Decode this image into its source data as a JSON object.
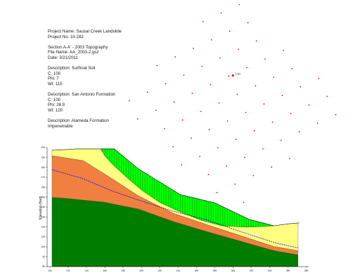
{
  "project": {
    "lines": [
      "Project Name: Sausal Creek Landslide",
      "Project No. 10-282",
      "",
      "Section A-A' - 2003 Topography",
      "File Name: AA_2003-2.gsz",
      "Date: 3/21/2011",
      "",
      "Description: Surficial Soil",
      "C: 100",
      "Phi: 7",
      "Wt: 115",
      "",
      "Description: San Antonio Formation",
      "C: 100",
      "Phi: 26.9",
      "Wt: 120",
      "",
      "Description: Alameda Formation",
      "Impenetrable"
    ]
  },
  "critical_point_label": "1.40",
  "plot": {
    "ylabel": "Elevation (feet)",
    "xticks": [
      "100",
      "120",
      "140",
      "160",
      "180",
      "200",
      "220",
      "240",
      "260",
      "280",
      "300",
      "320",
      "340",
      "360",
      "380"
    ],
    "yticks": [
      "200",
      "190",
      "180",
      "170",
      "160",
      "150",
      "140",
      "130",
      "120",
      "110",
      "100",
      "90",
      "80"
    ]
  },
  "colors": {
    "surficial_soil": "#ffff80",
    "san_antonio": "#f07f40",
    "alameda": "#007c00",
    "slip_mass": "#00ff00",
    "water_table": "#0000ff",
    "grid_point": "#ff0000"
  }
}
